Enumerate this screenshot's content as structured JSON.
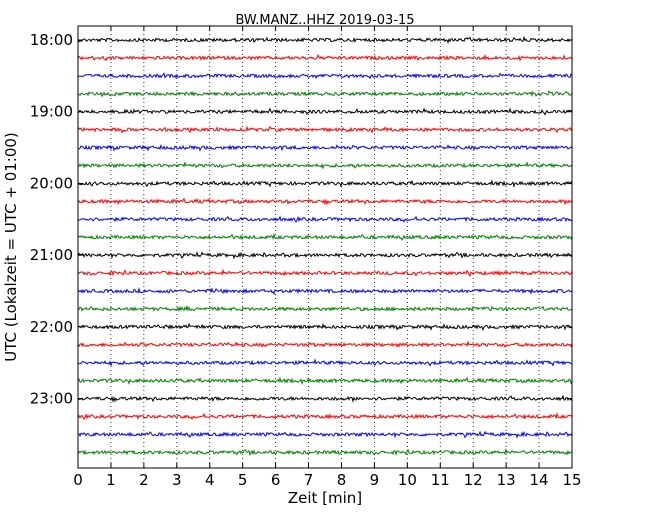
{
  "chart_data": {
    "type": "line",
    "title": "BW.MANZ..HHZ 2019-03-15",
    "xlabel": "Zeit  [min]",
    "ylabel": "UTC (Lokalzeit = UTC + 01:00)",
    "xlim": [
      0,
      15
    ],
    "xticks": [
      0,
      1,
      2,
      3,
      4,
      5,
      6,
      7,
      8,
      9,
      10,
      11,
      12,
      13,
      14,
      15
    ],
    "xtick_labels": [
      "0",
      "1",
      "2",
      "3",
      "4",
      "5",
      "6",
      "7",
      "8",
      "9",
      "10",
      "11",
      "12",
      "13",
      "14",
      "15"
    ],
    "ytick_labels": [
      "18:00",
      "19:00",
      "20:00",
      "21:00",
      "22:00",
      "23:00"
    ],
    "ytick_trace_index": [
      0,
      4,
      8,
      12,
      16,
      20
    ],
    "trace_start_times": [
      "18:00",
      "18:15",
      "18:30",
      "18:45",
      "19:00",
      "19:15",
      "19:30",
      "19:45",
      "20:00",
      "20:15",
      "20:30",
      "20:45",
      "21:00",
      "21:15",
      "21:30",
      "21:45",
      "22:00",
      "22:15",
      "22:30",
      "22:45",
      "23:00",
      "23:15",
      "23:30",
      "23:45"
    ],
    "trace_colors": [
      "#000000",
      "#ff0000",
      "#0000ff",
      "#008000"
    ],
    "grid": "vertical dotted",
    "legend": "none"
  }
}
